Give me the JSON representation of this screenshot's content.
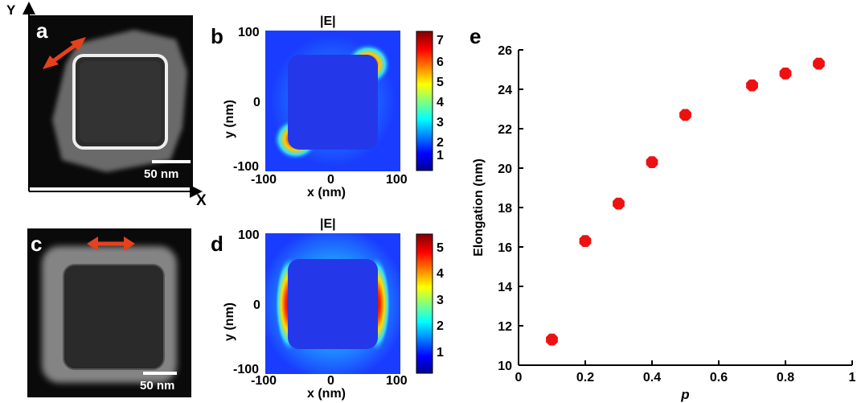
{
  "panels": {
    "a": {
      "label": "a",
      "scale_text": "50 nm"
    },
    "b": {
      "label": "b",
      "title": "|E|",
      "ylabel": "y (nm)",
      "xlabel": "x (nm)",
      "xticks": [
        "-100",
        "0",
        "100"
      ],
      "yticks": [
        "100",
        "0",
        "-100"
      ],
      "cbar_ticks": [
        "7",
        "6",
        "5",
        "4",
        "3",
        "2",
        "1"
      ]
    },
    "c": {
      "label": "c",
      "scale_text": "50 nm"
    },
    "d": {
      "label": "d",
      "title": "|E|",
      "ylabel": "y (nm)",
      "xlabel": "x (nm)",
      "xticks": [
        "-100",
        "0",
        "100"
      ],
      "yticks": [
        "100",
        "0",
        "-100"
      ],
      "cbar_ticks": [
        "5",
        "4",
        "3",
        "2",
        "1"
      ]
    },
    "e": {
      "label": "e"
    }
  },
  "axes_arrows": {
    "y_label": "Y",
    "x_label": "X"
  },
  "colors": {
    "arrow": "#e8401c",
    "marker": "#ee1111",
    "field_bg": "#1a3cff"
  },
  "chart_data": {
    "type": "scatter",
    "title": "",
    "xlabel": "p",
    "ylabel": "Elongation (nm)",
    "xlim": [
      0,
      1
    ],
    "ylim": [
      10,
      26
    ],
    "xticks": [
      "0",
      "0.2",
      "0.4",
      "0.6",
      "0.8",
      "1"
    ],
    "yticks": [
      "10",
      "12",
      "14",
      "16",
      "18",
      "20",
      "22",
      "24",
      "26"
    ],
    "series": [
      {
        "x": [
          0.1,
          0.2,
          0.3,
          0.4,
          0.5,
          0.7,
          0.8,
          0.9
        ],
        "y": [
          11.3,
          16.3,
          18.2,
          20.3,
          22.7,
          24.2,
          24.8,
          25.3
        ]
      }
    ]
  }
}
